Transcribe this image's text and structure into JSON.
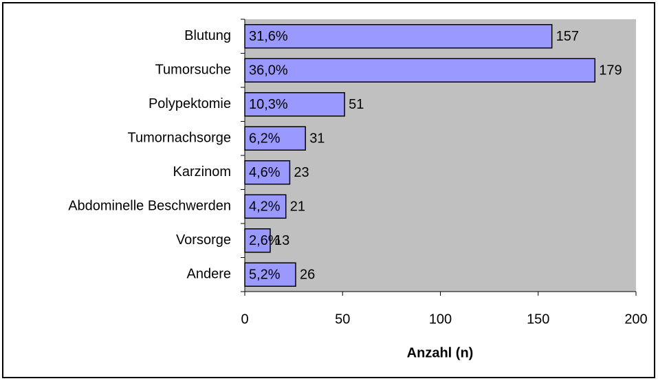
{
  "chart_data": {
    "type": "barh",
    "categories": [
      "Blutung",
      "Tumorsuche",
      "Polypektomie",
      "Tumornachsorge",
      "Karzinom",
      "Abdominelle Beschwerden",
      "Vorsorge",
      "Andere"
    ],
    "values": [
      157,
      179,
      51,
      31,
      23,
      21,
      13,
      26
    ],
    "percent_labels": [
      "31,6%",
      "36,0%",
      "10,3%",
      "6,2%",
      "4,6%",
      "4,2%",
      "2,6%",
      "5,2%"
    ],
    "color": "#9999ff",
    "xlabel": "Anzahl (n)",
    "xlim": [
      0,
      200
    ],
    "xticks": [
      0,
      50,
      100,
      150,
      200
    ]
  }
}
